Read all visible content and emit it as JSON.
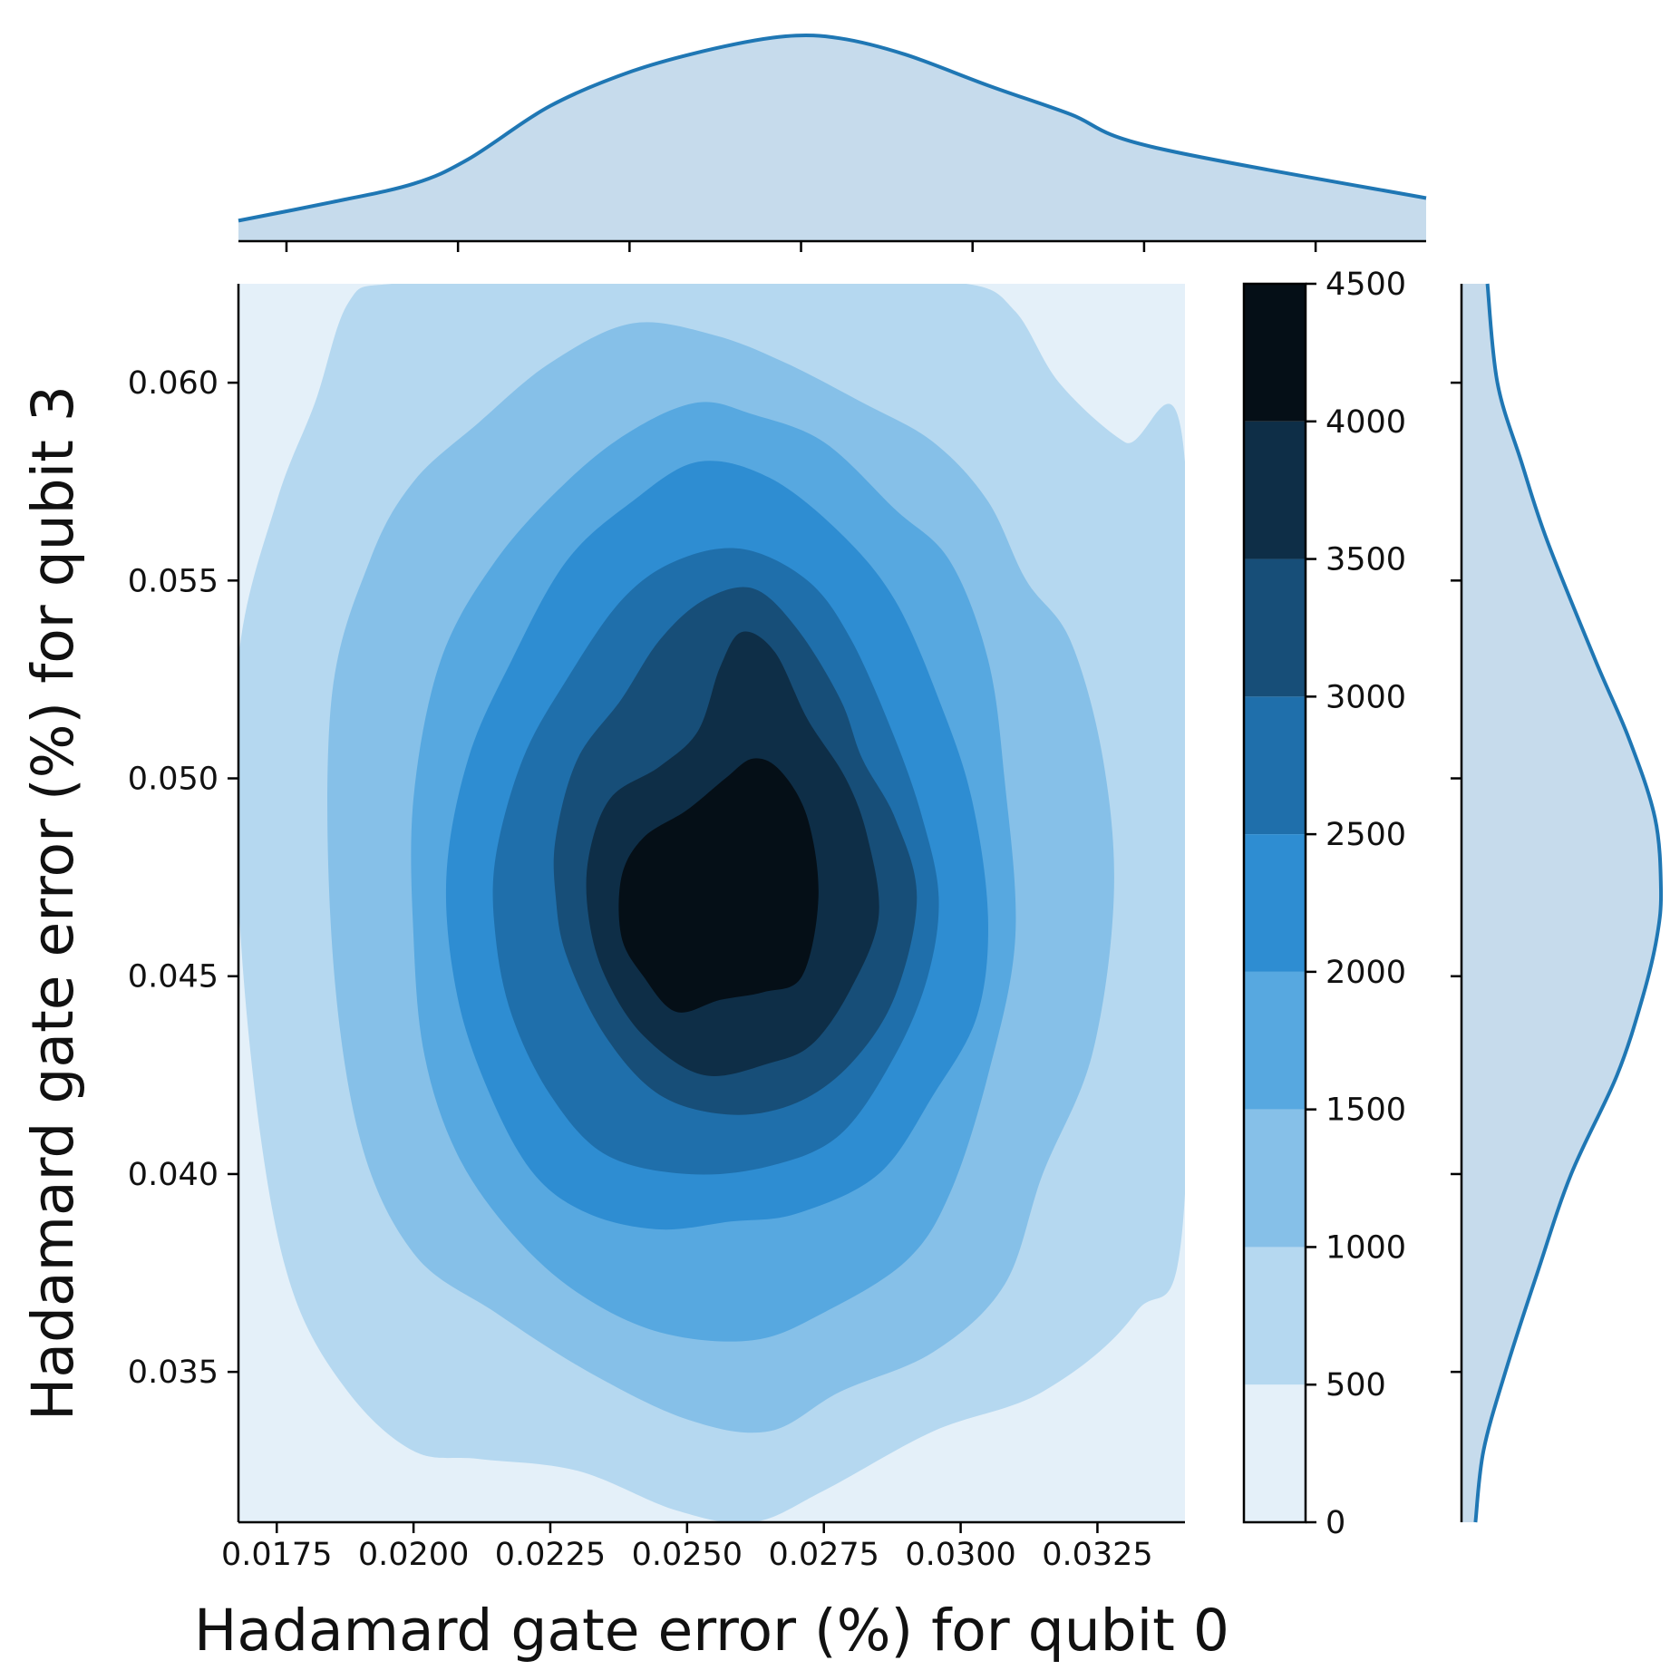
{
  "chart_data": {
    "type": "heatmap",
    "subtype": "joint-kde-filled-contour-with-marginals",
    "xlabel": "Hadamard gate error (%) for qubit 0",
    "ylabel": "Hadamard gate error (%) for qubit 3",
    "xlim": [
      0.0168,
      0.0341
    ],
    "ylim": [
      0.0312,
      0.0625
    ],
    "xticks": [
      "0.0175",
      "0.0200",
      "0.0225",
      "0.0250",
      "0.0275",
      "0.0300",
      "0.0325"
    ],
    "yticks": [
      "0.035",
      "0.040",
      "0.045",
      "0.050",
      "0.055",
      "0.060"
    ],
    "colorbar": {
      "levels": [
        0,
        500,
        1000,
        1500,
        2000,
        2500,
        3000,
        3500,
        4000,
        4500
      ],
      "ticklabels": [
        "0",
        "500",
        "1000",
        "1500",
        "2000",
        "2500",
        "3000",
        "3500",
        "4000",
        "4500"
      ],
      "colors": [
        "#e4f0f9",
        "#b5d8f0",
        "#86c0e8",
        "#57a8e0",
        "#2e8dd2",
        "#1f6fab",
        "#174e78",
        "#0e2e47",
        "#050f17"
      ]
    },
    "kde_peak": {
      "x": 0.0257,
      "y": 0.0472,
      "density": 4500
    },
    "contours": [
      {
        "level": 500,
        "points": [
          [
            0.0168,
            0.053
          ],
          [
            0.0175,
            0.057
          ],
          [
            0.0182,
            0.0595
          ],
          [
            0.0188,
            0.062
          ],
          [
            0.0196,
            0.0625
          ],
          [
            0.0225,
            0.0625
          ],
          [
            0.025,
            0.0625
          ],
          [
            0.0275,
            0.0625
          ],
          [
            0.0301,
            0.0625
          ],
          [
            0.031,
            0.0618
          ],
          [
            0.0318,
            0.06
          ],
          [
            0.033,
            0.0585
          ],
          [
            0.0341,
            0.058
          ],
          [
            0.0341,
            0.0395
          ],
          [
            0.0332,
            0.0365
          ],
          [
            0.0315,
            0.0345
          ],
          [
            0.0295,
            0.0335
          ],
          [
            0.0275,
            0.032
          ],
          [
            0.0262,
            0.0312
          ],
          [
            0.0248,
            0.0315
          ],
          [
            0.023,
            0.0325
          ],
          [
            0.0212,
            0.0328
          ],
          [
            0.02,
            0.033
          ],
          [
            0.0188,
            0.0345
          ],
          [
            0.0178,
            0.037
          ],
          [
            0.0172,
            0.041
          ],
          [
            0.0168,
            0.047
          ]
        ]
      },
      {
        "level": 1000,
        "points": [
          [
            0.0185,
            0.052
          ],
          [
            0.0192,
            0.0555
          ],
          [
            0.02,
            0.0575
          ],
          [
            0.0212,
            0.059
          ],
          [
            0.0225,
            0.0605
          ],
          [
            0.024,
            0.0615
          ],
          [
            0.0255,
            0.0612
          ],
          [
            0.0268,
            0.0605
          ],
          [
            0.0282,
            0.0595
          ],
          [
            0.0295,
            0.0585
          ],
          [
            0.0305,
            0.057
          ],
          [
            0.0312,
            0.055
          ],
          [
            0.032,
            0.0535
          ],
          [
            0.0326,
            0.0505
          ],
          [
            0.0328,
            0.047
          ],
          [
            0.0324,
            0.043
          ],
          [
            0.0315,
            0.04
          ],
          [
            0.0308,
            0.0372
          ],
          [
            0.0295,
            0.0355
          ],
          [
            0.0278,
            0.0345
          ],
          [
            0.0265,
            0.0335
          ],
          [
            0.025,
            0.0338
          ],
          [
            0.0232,
            0.035
          ],
          [
            0.0215,
            0.0365
          ],
          [
            0.02,
            0.038
          ],
          [
            0.019,
            0.041
          ],
          [
            0.0185,
            0.046
          ]
        ]
      },
      {
        "level": 1500,
        "points": [
          [
            0.02,
            0.0495
          ],
          [
            0.0205,
            0.053
          ],
          [
            0.0215,
            0.0555
          ],
          [
            0.0228,
            0.0575
          ],
          [
            0.024,
            0.0588
          ],
          [
            0.0252,
            0.0595
          ],
          [
            0.0262,
            0.0592
          ],
          [
            0.0275,
            0.0585
          ],
          [
            0.0288,
            0.0568
          ],
          [
            0.0298,
            0.0555
          ],
          [
            0.0305,
            0.053
          ],
          [
            0.0308,
            0.05
          ],
          [
            0.031,
            0.046
          ],
          [
            0.0305,
            0.0425
          ],
          [
            0.0298,
            0.0395
          ],
          [
            0.029,
            0.0378
          ],
          [
            0.0275,
            0.0365
          ],
          [
            0.0262,
            0.0358
          ],
          [
            0.0245,
            0.036
          ],
          [
            0.023,
            0.037
          ],
          [
            0.0218,
            0.0385
          ],
          [
            0.0208,
            0.0405
          ],
          [
            0.0202,
            0.043
          ],
          [
            0.02,
            0.046
          ]
        ]
      },
      {
        "level": 2000,
        "points": [
          [
            0.0206,
            0.0475
          ],
          [
            0.021,
            0.0505
          ],
          [
            0.0218,
            0.053
          ],
          [
            0.0228,
            0.0555
          ],
          [
            0.024,
            0.057
          ],
          [
            0.0252,
            0.058
          ],
          [
            0.0265,
            0.0576
          ],
          [
            0.0278,
            0.0562
          ],
          [
            0.0288,
            0.0545
          ],
          [
            0.0296,
            0.052
          ],
          [
            0.0302,
            0.0495
          ],
          [
            0.0305,
            0.0465
          ],
          [
            0.0303,
            0.044
          ],
          [
            0.0295,
            0.042
          ],
          [
            0.0285,
            0.04
          ],
          [
            0.027,
            0.039
          ],
          [
            0.0258,
            0.0388
          ],
          [
            0.0245,
            0.0386
          ],
          [
            0.0232,
            0.039
          ],
          [
            0.0222,
            0.04
          ],
          [
            0.0214,
            0.042
          ],
          [
            0.0208,
            0.0445
          ]
        ]
      },
      {
        "level": 2500,
        "points": [
          [
            0.0215,
            0.048
          ],
          [
            0.022,
            0.0505
          ],
          [
            0.0228,
            0.0525
          ],
          [
            0.0238,
            0.0545
          ],
          [
            0.0248,
            0.0555
          ],
          [
            0.026,
            0.0558
          ],
          [
            0.0272,
            0.055
          ],
          [
            0.028,
            0.0535
          ],
          [
            0.0288,
            0.051
          ],
          [
            0.0293,
            0.049
          ],
          [
            0.0296,
            0.047
          ],
          [
            0.0294,
            0.045
          ],
          [
            0.0288,
            0.043
          ],
          [
            0.0278,
            0.041
          ],
          [
            0.0265,
            0.0402
          ],
          [
            0.025,
            0.04
          ],
          [
            0.0235,
            0.0405
          ],
          [
            0.0225,
            0.042
          ],
          [
            0.0218,
            0.044
          ],
          [
            0.0215,
            0.046
          ]
        ]
      },
      {
        "level": 3000,
        "points": [
          [
            0.0226,
            0.0485
          ],
          [
            0.023,
            0.0505
          ],
          [
            0.0238,
            0.052
          ],
          [
            0.0245,
            0.0535
          ],
          [
            0.0253,
            0.0545
          ],
          [
            0.0262,
            0.0548
          ],
          [
            0.027,
            0.0538
          ],
          [
            0.0278,
            0.052
          ],
          [
            0.0282,
            0.0505
          ],
          [
            0.0288,
            0.049
          ],
          [
            0.0292,
            0.047
          ],
          [
            0.0288,
            0.0445
          ],
          [
            0.028,
            0.0428
          ],
          [
            0.027,
            0.0418
          ],
          [
            0.0258,
            0.0415
          ],
          [
            0.0245,
            0.042
          ],
          [
            0.0235,
            0.0435
          ],
          [
            0.0228,
            0.0455
          ],
          [
            0.0226,
            0.047
          ]
        ]
      },
      {
        "level": 3500,
        "points": [
          [
            0.0232,
            0.048
          ],
          [
            0.0236,
            0.0495
          ],
          [
            0.0245,
            0.0503
          ],
          [
            0.0252,
            0.0512
          ],
          [
            0.0256,
            0.0528
          ],
          [
            0.026,
            0.0537
          ],
          [
            0.0266,
            0.0532
          ],
          [
            0.0272,
            0.0515
          ],
          [
            0.0279,
            0.05
          ],
          [
            0.0283,
            0.0485
          ],
          [
            0.0285,
            0.0465
          ],
          [
            0.028,
            0.0447
          ],
          [
            0.0273,
            0.0433
          ],
          [
            0.0265,
            0.0428
          ],
          [
            0.0253,
            0.0425
          ],
          [
            0.0242,
            0.0435
          ],
          [
            0.0235,
            0.045
          ],
          [
            0.0232,
            0.0465
          ]
        ]
      },
      {
        "level": 4000,
        "points": [
          [
            0.0238,
            0.0475
          ],
          [
            0.0242,
            0.0485
          ],
          [
            0.025,
            0.0492
          ],
          [
            0.0257,
            0.05
          ],
          [
            0.0262,
            0.0505
          ],
          [
            0.0267,
            0.0502
          ],
          [
            0.0272,
            0.049
          ],
          [
            0.0274,
            0.047
          ],
          [
            0.0271,
            0.045
          ],
          [
            0.0264,
            0.0446
          ],
          [
            0.0256,
            0.0444
          ],
          [
            0.0248,
            0.0441
          ],
          [
            0.0242,
            0.045
          ],
          [
            0.0238,
            0.046
          ]
        ]
      }
    ],
    "marginal_x": {
      "x": [
        0.0168,
        0.0185,
        0.02,
        0.021,
        0.0225,
        0.024,
        0.0255,
        0.0268,
        0.0278,
        0.029,
        0.0305,
        0.032,
        0.0335,
        0.0341
      ],
      "density": [
        0.1,
        0.19,
        0.28,
        0.4,
        0.66,
        0.83,
        0.94,
        1.0,
        0.99,
        0.91,
        0.76,
        0.62,
        0.46,
        0.21
      ]
    },
    "marginal_y": {
      "y": [
        0.0312,
        0.033,
        0.035,
        0.0375,
        0.04,
        0.0425,
        0.0445,
        0.046,
        0.0472,
        0.049,
        0.051,
        0.053,
        0.056,
        0.058,
        0.06,
        0.0625
      ],
      "density": [
        0.07,
        0.11,
        0.22,
        0.38,
        0.55,
        0.78,
        0.91,
        0.98,
        1.0,
        0.97,
        0.84,
        0.67,
        0.43,
        0.3,
        0.18,
        0.13
      ]
    },
    "colors": {
      "marginal_line": "#1f77b4",
      "marginal_fill": "#c6dbec"
    }
  }
}
